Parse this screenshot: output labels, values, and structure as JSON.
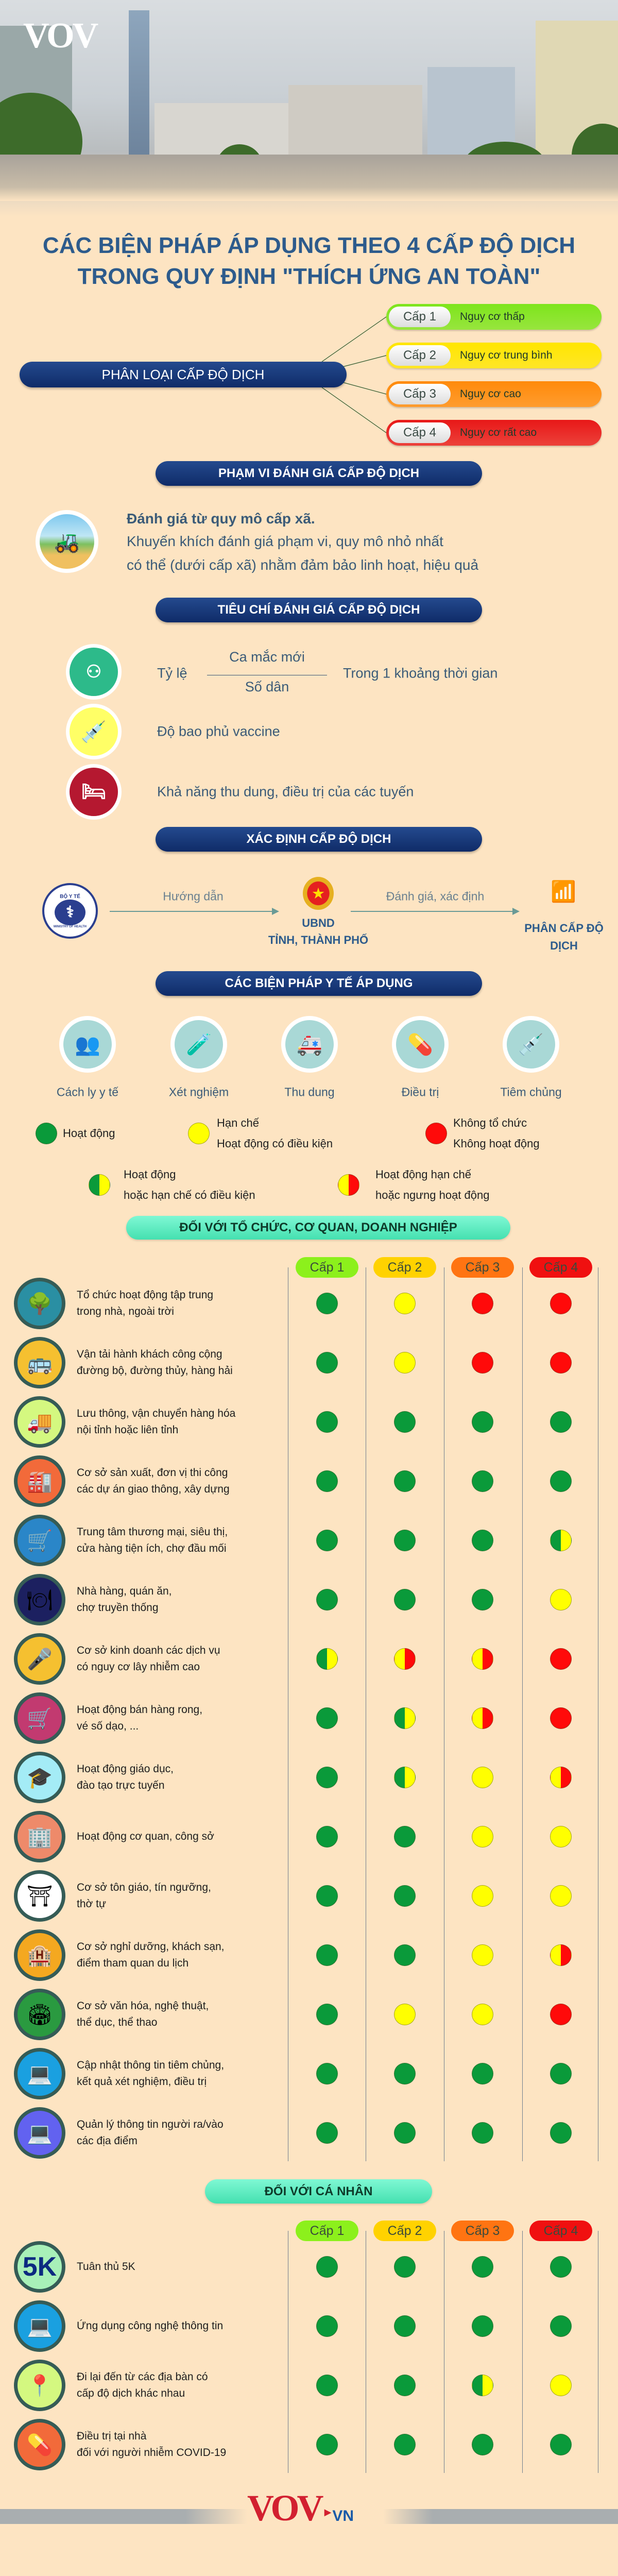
{
  "banner": {
    "logo": "VOV"
  },
  "title": {
    "line1": "CÁC BIỆN PHÁP ÁP DỤNG THEO 4 CẤP ĐỘ DỊCH",
    "line2": "TRONG QUY ĐỊNH \"THÍCH ỨNG AN TOÀN\""
  },
  "classification": {
    "label": "PHÂN LOẠI CẤP ĐỘ DỊCH",
    "levels": [
      {
        "level": "Cấp 1",
        "risk": "Nguy cơ thấp",
        "color": "#7ee51c"
      },
      {
        "level": "Cấp 2",
        "risk": "Nguy cơ trung bình",
        "color": "#ffe600"
      },
      {
        "level": "Cấp 3",
        "risk": "Nguy cơ cao",
        "color": "#ff8a0a"
      },
      {
        "level": "Cấp 4",
        "risk": "Nguy cơ rất cao",
        "color": "#e81818"
      }
    ]
  },
  "scope": {
    "header": "PHẠM VI ĐÁNH GIÁ CẤP ĐỘ DỊCH",
    "icon": "countryside-icon",
    "bold": "Đánh giá từ quy mô cấp xã.",
    "line1": "Khuyến khích đánh giá phạm vi, quy mô nhỏ nhất",
    "line2": "có thể (dưới cấp xã) nhằm đảm bảo linh hoạt, hiệu quả"
  },
  "criteria": {
    "header": "TIÊU CHÍ ĐÁNH GIÁ CẤP ĐỘ DỊCH",
    "rate_label": "Tỷ lệ",
    "numerator": "Ca mắc mới",
    "denominator": "Số dân",
    "period": "Trong 1 khoảng thời gian",
    "vaccine": "Độ bao phủ vaccine",
    "capacity": "Khả năng thu dung, điều trị của các tuyến"
  },
  "determine": {
    "header": "XÁC ĐỊNH CẤP ĐỘ DỊCH",
    "ministry_logo": {
      "top": "BỘ Y TẾ",
      "bottom": "MINISTRY OF HEALTH"
    },
    "guide": "Hướng dẫn",
    "authority_line1": "UBND",
    "authority_line2": "TỈNH, THÀNH PHỐ",
    "assess": "Đánh giá, xác định",
    "result_line1": "PHÂN CẤP ĐỘ",
    "result_line2": "DỊCH"
  },
  "measures": {
    "header": "CÁC BIỆN PHÁP Y TẾ ÁP DỤNG",
    "items": [
      {
        "label": "Cách ly y tế",
        "icon": "quarantine-icon"
      },
      {
        "label": "Xét nghiệm",
        "icon": "test-kit-icon"
      },
      {
        "label": "Thu dung",
        "icon": "ambulance-icon"
      },
      {
        "label": "Điều trị",
        "icon": "medicine-icon"
      },
      {
        "label": "Tiêm chủng",
        "icon": "vaccine-syringe-icon"
      }
    ]
  },
  "legend": [
    {
      "status": "green",
      "line1": "Hoạt động",
      "line2": ""
    },
    {
      "status": "yellow",
      "line1": "Hạn chế",
      "line2": "Hoạt động có điều kiện"
    },
    {
      "status": "red",
      "line1": "Không tổ chức",
      "line2": "Không hoạt động"
    },
    {
      "status": "green-yellow",
      "line1": "Hoạt động",
      "line2": "hoặc hạn chế có điều kiện"
    },
    {
      "status": "yellow-red",
      "line1": "Hoạt động hạn chế",
      "line2": "hoặc ngưng hoạt động"
    }
  ],
  "status_colors": {
    "green": "#0a9a3a",
    "yellow": "#ffff00",
    "red": "#ff0a0a"
  },
  "level_header_colors": [
    "#8cf01c",
    "#ffd200",
    "#ff7412",
    "#f01010"
  ],
  "organizations": {
    "header": "ĐỐI VỚI TỔ CHỨC, CƠ QUAN, DOANH NGHIỆP",
    "levels": [
      "Cấp 1",
      "Cấp 2",
      "Cấp 3",
      "Cấp 4"
    ],
    "rows": [
      {
        "line1": "Tổ chức hoạt động tập trung",
        "line2": "trong nhà, ngoài trời",
        "icon": "park-bench-icon",
        "icon_color": "#2a8fa3",
        "statuses": [
          "green",
          "yellow",
          "red",
          "red"
        ]
      },
      {
        "line1": "Vận tải hành khách công cộng",
        "line2": "đường bộ, đường thủy, hàng hải",
        "icon": "bus-icon",
        "icon_color": "#f5c030",
        "statuses": [
          "green",
          "yellow",
          "red",
          "red"
        ]
      },
      {
        "line1": "Lưu thông, vận chuyển hàng hóa",
        "line2": "nội tỉnh hoặc liên tỉnh",
        "icon": "truck-icon",
        "icon_color": "#d4f880",
        "statuses": [
          "green",
          "green",
          "green",
          "green"
        ]
      },
      {
        "line1": "Cơ sở sản xuất, đơn vị thi công",
        "line2": "các dự án giao thông, xây dựng",
        "icon": "factory-icon",
        "icon_color": "#f26a3a",
        "statuses": [
          "green",
          "green",
          "green",
          "green"
        ]
      },
      {
        "line1": "Trung tâm thương mại, siêu thị,",
        "line2": "cửa hàng tiện ích, chợ đầu mối",
        "icon": "shopping-cart-icon",
        "icon_color": "#2a86c8",
        "statuses": [
          "green",
          "green",
          "green",
          "green-yellow"
        ]
      },
      {
        "line1": "Nhà hàng, quán ăn,",
        "line2": "chợ truyền thống",
        "icon": "restaurant-plate-icon",
        "icon_color": "#1c2060",
        "statuses": [
          "green",
          "green",
          "green",
          "yellow"
        ]
      },
      {
        "line1": "Cơ sở kinh doanh các dịch vụ",
        "line2": "có nguy cơ lây nhiễm cao",
        "icon": "microphone-icon",
        "icon_color": "#f5c030",
        "statuses": [
          "green-yellow",
          "yellow-red",
          "yellow-red",
          "red"
        ]
      },
      {
        "line1": "Hoạt động bán hàng rong,",
        "line2": "vé số dạo, ...",
        "icon": "street-cart-icon",
        "icon_color": "#c23a70",
        "statuses": [
          "green",
          "green-yellow",
          "yellow-red",
          "red"
        ]
      },
      {
        "line1": "Hoạt động giáo dục,",
        "line2": "đào tạo trực tuyến",
        "icon": "graduation-cap-icon",
        "icon_color": "#a4ecf6",
        "statuses": [
          "green",
          "green-yellow",
          "yellow",
          "yellow-red"
        ]
      },
      {
        "line1": "Hoạt động cơ quan, công sở",
        "line2": "",
        "icon": "office-building-icon",
        "icon_color": "#ee8a6a",
        "statuses": [
          "green",
          "green",
          "yellow",
          "yellow"
        ]
      },
      {
        "line1": "Cơ sở tôn giáo, tín ngưỡng,",
        "line2": "thờ tự",
        "icon": "pagoda-icon",
        "icon_color": "#ffffff",
        "statuses": [
          "green",
          "green",
          "yellow",
          "yellow"
        ]
      },
      {
        "line1": "Cơ sở nghỉ dưỡng, khách sạn,",
        "line2": "điểm tham quan du lịch",
        "icon": "hotel-icon",
        "icon_color": "#f4a820",
        "statuses": [
          "green",
          "green",
          "yellow",
          "yellow-red"
        ]
      },
      {
        "line1": "Cơ sở văn hóa, nghệ thuật,",
        "line2": "thể dục, thể thao",
        "icon": "stadium-icon",
        "icon_color": "#2a9a40",
        "statuses": [
          "green",
          "yellow",
          "yellow",
          "red"
        ]
      },
      {
        "line1": "Cập nhật thông tin tiêm chủng,",
        "line2": "kết quả xét nghiệm, điều trị",
        "icon": "laptop-icon",
        "icon_color": "#1aa0e0",
        "statuses": [
          "green",
          "green",
          "green",
          "green"
        ]
      },
      {
        "line1": "Quản lý thông tin người ra/vào",
        "line2": "các địa điểm",
        "icon": "laptop-icon",
        "icon_color": "#6262f0",
        "statuses": [
          "green",
          "green",
          "green",
          "green"
        ]
      }
    ]
  },
  "individuals": {
    "header": "ĐỐI VỚI CÁ NHÂN",
    "levels": [
      "Cấp 1",
      "Cấp 2",
      "Cấp 3",
      "Cấp 4"
    ],
    "rows": [
      {
        "line1": "Tuân thủ 5K",
        "line2": "",
        "icon": "5k-icon",
        "icon_text": "5K",
        "icon_color": "#a8f0b8",
        "statuses": [
          "green",
          "green",
          "green",
          "green"
        ]
      },
      {
        "line1": "Ứng dụng công nghệ thông tin",
        "line2": "",
        "icon": "laptop-icon",
        "icon_color": "#1aa0e0",
        "statuses": [
          "green",
          "green",
          "green",
          "green"
        ]
      },
      {
        "line1": "Đi lại đến từ các địa bàn có",
        "line2": "cấp độ dịch khác nhau",
        "icon": "map-pin-icon",
        "icon_color": "#d4f880",
        "statuses": [
          "green",
          "green",
          "green-yellow",
          "yellow"
        ]
      },
      {
        "line1": "Điều trị tại nhà",
        "line2": "đối với người nhiễm COVID-19",
        "icon": "medicine-icon",
        "icon_color": "#f26a3a",
        "statuses": [
          "green",
          "green",
          "green",
          "green"
        ]
      }
    ]
  },
  "footer": {
    "logo": "VOV",
    "logo_suffix": "VN"
  }
}
